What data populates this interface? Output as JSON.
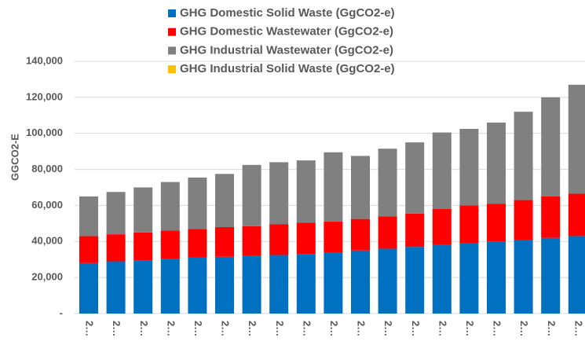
{
  "chart_data": {
    "type": "stacked_bar",
    "y_axis_label": "GGCO2-E",
    "categories": [
      "2…",
      "2…",
      "2…",
      "2…",
      "2…",
      "2…",
      "2…",
      "2…",
      "2…",
      "2…",
      "2…",
      "2…",
      "2…",
      "2…",
      "2…",
      "2…",
      "2…",
      "2…",
      "2…"
    ],
    "series": [
      {
        "name": "GHG Domestic Solid Waste (GgCO2-e)",
        "color": "#0070c0",
        "values": [
          28000,
          29000,
          29500,
          30500,
          31000,
          31500,
          32000,
          32500,
          33000,
          34000,
          35000,
          36000,
          37000,
          38000,
          39000,
          40000,
          41000,
          42000,
          43000
        ]
      },
      {
        "name": "GHG Domestic Wastewater (GgCO2-e)",
        "color": "#ff0000",
        "values": [
          15000,
          15000,
          15500,
          15500,
          16000,
          16500,
          16500,
          17000,
          17500,
          17000,
          17500,
          18000,
          18500,
          20000,
          21000,
          21000,
          22000,
          23000,
          23500
        ]
      },
      {
        "name": "GHG Industrial Wastewater (GgCO2-e)",
        "color": "#808080",
        "values": [
          22000,
          23500,
          25000,
          27000,
          28500,
          29500,
          34000,
          34500,
          34500,
          38500,
          35000,
          37500,
          39500,
          42500,
          42500,
          45000,
          49000,
          55000,
          60500
        ]
      },
      {
        "name": "GHG Industrial Solid Waste (GgCO2-e)",
        "color": "#ffc000",
        "values": [
          0,
          0,
          0,
          0,
          0,
          0,
          0,
          0,
          0,
          0,
          0,
          0,
          0,
          0,
          0,
          0,
          0,
          0,
          0
        ]
      }
    ],
    "ylim": [
      0,
      140000
    ],
    "yticks": [
      {
        "value": 0,
        "label": "-"
      },
      {
        "value": 20000,
        "label": "20,000"
      },
      {
        "value": 40000,
        "label": "40,000"
      },
      {
        "value": 60000,
        "label": "60,000"
      },
      {
        "value": 80000,
        "label": "80,000"
      },
      {
        "value": 100000,
        "label": "100,000"
      },
      {
        "value": 120000,
        "label": "120,000"
      },
      {
        "value": 140000,
        "label": "140,000"
      }
    ],
    "grid": true,
    "legend": "top"
  }
}
